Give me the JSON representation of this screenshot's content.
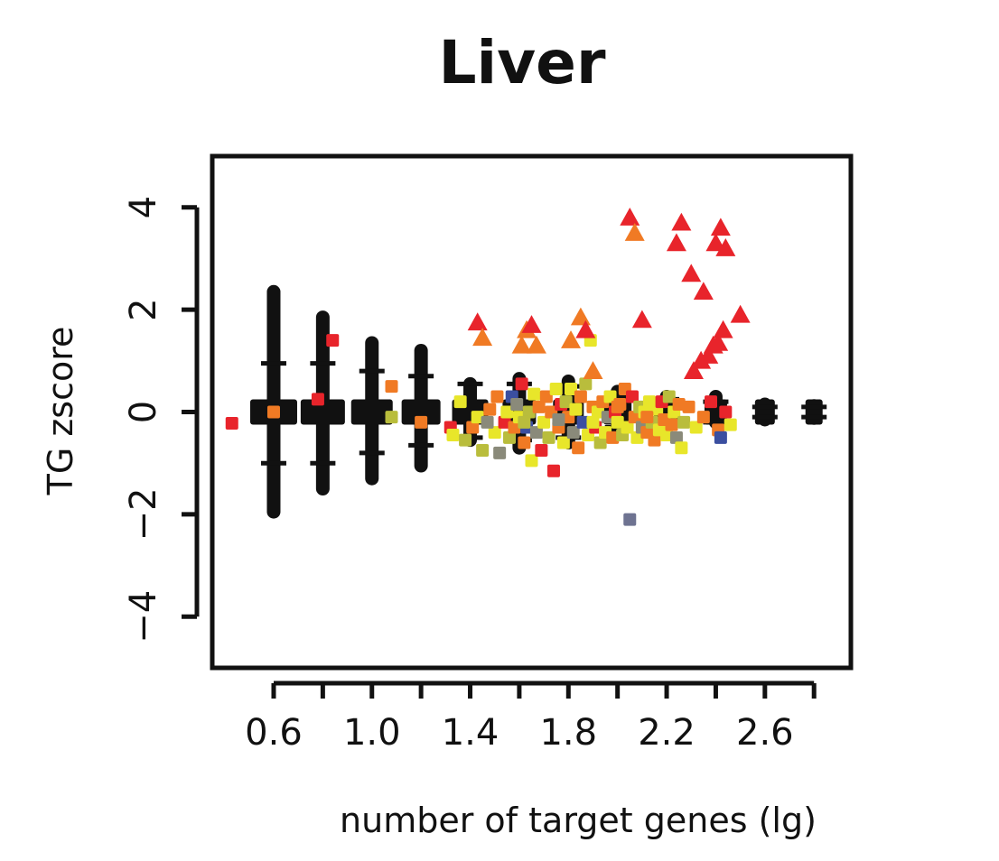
{
  "chart_data": {
    "type": "scatter",
    "title": "Liver",
    "xlabel": "number of target genes (lg)",
    "ylabel": "TG zscore",
    "xlim": [
      0.35,
      2.95
    ],
    "ylim": [
      -5,
      5
    ],
    "xticks": [
      0.6,
      0.8,
      1.0,
      1.2,
      1.4,
      1.6,
      1.8,
      2.0,
      2.2,
      2.4,
      2.6,
      2.8
    ],
    "xtick_labels": [
      "0.6",
      "",
      "1.0",
      "",
      "1.4",
      "",
      "1.8",
      "",
      "2.2",
      "",
      "2.6",
      ""
    ],
    "yticks": [
      4,
      2,
      0,
      -2,
      -4
    ],
    "ytick_labels": [
      "4",
      "2",
      "0",
      "−2",
      "−4"
    ],
    "grid": false,
    "legend": "none",
    "colors": {
      "null_distribution": "#111111",
      "red": "#e8242b",
      "orange": "#f07a24",
      "yellow": "#e8e62a",
      "olive": "#b9bd3c",
      "grey": "#8a8a7a",
      "blue": "#3b4fa0",
      "slate": "#6e7391"
    },
    "null_columns": [
      {
        "x": 0.6,
        "y_min": -1.95,
        "y_max": 2.35,
        "whisker_hi": 0.95,
        "whisker_lo": -1.0
      },
      {
        "x": 0.8,
        "y_min": -1.5,
        "y_max": 1.85,
        "whisker_hi": 0.95,
        "whisker_lo": -1.0
      },
      {
        "x": 1.0,
        "y_min": -1.3,
        "y_max": 1.35,
        "whisker_hi": 0.8,
        "whisker_lo": -0.8
      },
      {
        "x": 1.2,
        "y_min": -1.05,
        "y_max": 1.2,
        "whisker_hi": 0.7,
        "whisker_lo": -0.65
      },
      {
        "x": 1.4,
        "y_min": -0.55,
        "y_max": 0.55,
        "whisker_hi": 0.55,
        "whisker_lo": -0.5
      },
      {
        "x": 1.6,
        "y_min": -0.7,
        "y_max": 0.65,
        "whisker_hi": 0.55,
        "whisker_lo": -0.55
      },
      {
        "x": 1.8,
        "y_min": -0.6,
        "y_max": 0.6,
        "whisker_hi": 0.5,
        "whisker_lo": -0.5
      },
      {
        "x": 2.0,
        "y_min": -0.35,
        "y_max": 0.4,
        "whisker_hi": 0.3,
        "whisker_lo": -0.3
      },
      {
        "x": 2.2,
        "y_min": -0.3,
        "y_max": 0.3,
        "whisker_hi": 0.25,
        "whisker_lo": -0.25
      },
      {
        "x": 2.4,
        "y_min": -0.2,
        "y_max": 0.3,
        "whisker_hi": 0.2,
        "whisker_lo": -0.2
      },
      {
        "x": 2.6,
        "y_min": -0.15,
        "y_max": 0.15,
        "whisker_hi": 0.1,
        "whisker_lo": -0.1
      },
      {
        "x": 2.8,
        "y_min": -0.12,
        "y_max": 0.12,
        "whisker_hi": 0.1,
        "whisker_lo": -0.1
      }
    ],
    "triangles": [
      {
        "x": 1.43,
        "y": 1.75,
        "c": "red"
      },
      {
        "x": 1.45,
        "y": 1.45,
        "c": "orange"
      },
      {
        "x": 1.61,
        "y": 1.3,
        "c": "orange"
      },
      {
        "x": 1.63,
        "y": 1.6,
        "c": "orange"
      },
      {
        "x": 1.65,
        "y": 1.7,
        "c": "red"
      },
      {
        "x": 1.67,
        "y": 1.3,
        "c": "orange"
      },
      {
        "x": 1.81,
        "y": 1.4,
        "c": "orange"
      },
      {
        "x": 1.85,
        "y": 1.85,
        "c": "orange"
      },
      {
        "x": 1.87,
        "y": 1.6,
        "c": "red"
      },
      {
        "x": 1.9,
        "y": 0.8,
        "c": "orange"
      },
      {
        "x": 2.05,
        "y": 3.8,
        "c": "red"
      },
      {
        "x": 2.07,
        "y": 3.5,
        "c": "orange"
      },
      {
        "x": 2.1,
        "y": 1.8,
        "c": "red"
      },
      {
        "x": 2.24,
        "y": 3.3,
        "c": "red"
      },
      {
        "x": 2.26,
        "y": 3.7,
        "c": "red"
      },
      {
        "x": 2.3,
        "y": 2.7,
        "c": "red"
      },
      {
        "x": 2.31,
        "y": 0.8,
        "c": "red"
      },
      {
        "x": 2.34,
        "y": 1.0,
        "c": "red"
      },
      {
        "x": 2.35,
        "y": 2.35,
        "c": "red"
      },
      {
        "x": 2.37,
        "y": 1.1,
        "c": "red"
      },
      {
        "x": 2.39,
        "y": 1.3,
        "c": "red"
      },
      {
        "x": 2.4,
        "y": 3.3,
        "c": "red"
      },
      {
        "x": 2.42,
        "y": 3.6,
        "c": "red"
      },
      {
        "x": 2.43,
        "y": 1.6,
        "c": "red"
      },
      {
        "x": 2.44,
        "y": 3.2,
        "c": "red"
      },
      {
        "x": 2.5,
        "y": 1.9,
        "c": "red"
      },
      {
        "x": 2.41,
        "y": 1.35,
        "c": "red"
      }
    ],
    "squares": [
      {
        "x": 0.43,
        "y": -0.22,
        "c": "red"
      },
      {
        "x": 0.6,
        "y": 0.0,
        "c": "orange"
      },
      {
        "x": 0.78,
        "y": 0.25,
        "c": "red"
      },
      {
        "x": 0.84,
        "y": 1.4,
        "c": "red"
      },
      {
        "x": 1.08,
        "y": 0.5,
        "c": "orange"
      },
      {
        "x": 1.08,
        "y": -0.1,
        "c": "olive"
      },
      {
        "x": 1.2,
        "y": -0.2,
        "c": "orange"
      },
      {
        "x": 1.32,
        "y": -0.3,
        "c": "red"
      },
      {
        "x": 1.33,
        "y": -0.45,
        "c": "yellow"
      },
      {
        "x": 1.36,
        "y": 0.2,
        "c": "yellow"
      },
      {
        "x": 1.38,
        "y": -0.55,
        "c": "olive"
      },
      {
        "x": 1.41,
        "y": -0.3,
        "c": "orange"
      },
      {
        "x": 1.43,
        "y": -0.1,
        "c": "yellow"
      },
      {
        "x": 1.45,
        "y": -0.75,
        "c": "olive"
      },
      {
        "x": 1.48,
        "y": 0.05,
        "c": "orange"
      },
      {
        "x": 1.5,
        "y": -0.4,
        "c": "yellow"
      },
      {
        "x": 1.51,
        "y": 0.3,
        "c": "orange"
      },
      {
        "x": 1.52,
        "y": -0.8,
        "c": "grey"
      },
      {
        "x": 1.54,
        "y": -0.2,
        "c": "red"
      },
      {
        "x": 1.55,
        "y": 0.0,
        "c": "yellow"
      },
      {
        "x": 1.56,
        "y": -0.5,
        "c": "olive"
      },
      {
        "x": 1.57,
        "y": 0.3,
        "c": "blue"
      },
      {
        "x": 1.58,
        "y": -0.3,
        "c": "orange"
      },
      {
        "x": 1.59,
        "y": 0.15,
        "c": "grey"
      },
      {
        "x": 1.6,
        "y": -0.1,
        "c": "yellow"
      },
      {
        "x": 1.61,
        "y": 0.55,
        "c": "red"
      },
      {
        "x": 1.62,
        "y": -0.6,
        "c": "orange"
      },
      {
        "x": 1.63,
        "y": -0.3,
        "c": "blue"
      },
      {
        "x": 1.64,
        "y": 0.0,
        "c": "olive"
      },
      {
        "x": 1.65,
        "y": -0.95,
        "c": "yellow"
      },
      {
        "x": 1.66,
        "y": 0.35,
        "c": "yellow"
      },
      {
        "x": 1.67,
        "y": -0.4,
        "c": "grey"
      },
      {
        "x": 1.68,
        "y": 0.1,
        "c": "orange"
      },
      {
        "x": 1.69,
        "y": -0.75,
        "c": "red"
      },
      {
        "x": 1.7,
        "y": -0.2,
        "c": "yellow"
      },
      {
        "x": 1.71,
        "y": 0.3,
        "c": "orange"
      },
      {
        "x": 1.72,
        "y": -0.5,
        "c": "olive"
      },
      {
        "x": 1.73,
        "y": 0.0,
        "c": "orange"
      },
      {
        "x": 1.74,
        "y": -1.15,
        "c": "red"
      },
      {
        "x": 1.75,
        "y": 0.45,
        "c": "yellow"
      },
      {
        "x": 1.76,
        "y": -0.3,
        "c": "orange"
      },
      {
        "x": 1.77,
        "y": 0.15,
        "c": "red"
      },
      {
        "x": 1.78,
        "y": -0.6,
        "c": "yellow"
      },
      {
        "x": 1.79,
        "y": 0.2,
        "c": "olive"
      },
      {
        "x": 1.8,
        "y": -0.1,
        "c": "orange"
      },
      {
        "x": 1.81,
        "y": 0.45,
        "c": "yellow"
      },
      {
        "x": 1.82,
        "y": -0.4,
        "c": "grey"
      },
      {
        "x": 1.83,
        "y": 0.05,
        "c": "yellow"
      },
      {
        "x": 1.84,
        "y": -0.7,
        "c": "orange"
      },
      {
        "x": 1.85,
        "y": 0.3,
        "c": "orange"
      },
      {
        "x": 1.86,
        "y": -0.2,
        "c": "blue"
      },
      {
        "x": 1.87,
        "y": 0.55,
        "c": "olive"
      },
      {
        "x": 1.88,
        "y": -0.45,
        "c": "yellow"
      },
      {
        "x": 1.89,
        "y": 1.4,
        "c": "yellow"
      },
      {
        "x": 1.9,
        "y": 0.1,
        "c": "orange"
      },
      {
        "x": 1.91,
        "y": -0.3,
        "c": "red"
      },
      {
        "x": 1.92,
        "y": 0.0,
        "c": "yellow"
      },
      {
        "x": 1.93,
        "y": -0.6,
        "c": "olive"
      },
      {
        "x": 1.94,
        "y": 0.2,
        "c": "orange"
      },
      {
        "x": 1.95,
        "y": -0.4,
        "c": "yellow"
      },
      {
        "x": 1.96,
        "y": -0.1,
        "c": "grey"
      },
      {
        "x": 1.97,
        "y": 0.3,
        "c": "yellow"
      },
      {
        "x": 1.98,
        "y": -0.5,
        "c": "orange"
      },
      {
        "x": 1.99,
        "y": 0.0,
        "c": "red"
      },
      {
        "x": 2.0,
        "y": -0.2,
        "c": "yellow"
      },
      {
        "x": 2.01,
        "y": 0.15,
        "c": "orange"
      },
      {
        "x": 2.02,
        "y": -0.45,
        "c": "olive"
      },
      {
        "x": 2.03,
        "y": 0.45,
        "c": "orange"
      },
      {
        "x": 2.04,
        "y": -0.3,
        "c": "yellow"
      },
      {
        "x": 2.05,
        "y": -2.1,
        "c": "slate"
      },
      {
        "x": 2.06,
        "y": 0.3,
        "c": "red"
      },
      {
        "x": 2.07,
        "y": -0.1,
        "c": "orange"
      },
      {
        "x": 2.08,
        "y": -0.5,
        "c": "yellow"
      },
      {
        "x": 2.09,
        "y": 0.1,
        "c": "olive"
      },
      {
        "x": 2.1,
        "y": -0.3,
        "c": "grey"
      },
      {
        "x": 2.11,
        "y": 0.0,
        "c": "yellow"
      },
      {
        "x": 2.12,
        "y": -0.4,
        "c": "orange"
      },
      {
        "x": 2.13,
        "y": 0.2,
        "c": "yellow"
      },
      {
        "x": 2.14,
        "y": -0.2,
        "c": "olive"
      },
      {
        "x": 2.15,
        "y": -0.55,
        "c": "orange"
      },
      {
        "x": 2.16,
        "y": 0.05,
        "c": "yellow"
      },
      {
        "x": 2.17,
        "y": -0.35,
        "c": "yellow"
      },
      {
        "x": 2.18,
        "y": 0.2,
        "c": "red"
      },
      {
        "x": 2.19,
        "y": -0.15,
        "c": "orange"
      },
      {
        "x": 2.2,
        "y": -0.45,
        "c": "yellow"
      },
      {
        "x": 2.21,
        "y": 0.3,
        "c": "olive"
      },
      {
        "x": 2.22,
        "y": -0.25,
        "c": "orange"
      },
      {
        "x": 2.23,
        "y": 0.0,
        "c": "yellow"
      },
      {
        "x": 2.24,
        "y": -0.5,
        "c": "grey"
      },
      {
        "x": 2.25,
        "y": 0.15,
        "c": "orange"
      },
      {
        "x": 2.26,
        "y": -0.7,
        "c": "yellow"
      },
      {
        "x": 2.27,
        "y": -0.2,
        "c": "olive"
      },
      {
        "x": 2.29,
        "y": 0.1,
        "c": "orange"
      },
      {
        "x": 2.32,
        "y": -0.3,
        "c": "yellow"
      },
      {
        "x": 2.35,
        "y": -0.1,
        "c": "orange"
      },
      {
        "x": 2.38,
        "y": 0.2,
        "c": "red"
      },
      {
        "x": 2.41,
        "y": -0.35,
        "c": "orange"
      },
      {
        "x": 2.42,
        "y": -0.5,
        "c": "blue"
      },
      {
        "x": 2.44,
        "y": 0.0,
        "c": "red"
      },
      {
        "x": 2.46,
        "y": -0.25,
        "c": "yellow"
      },
      {
        "x": 1.47,
        "y": -0.2,
        "c": "grey"
      },
      {
        "x": 1.62,
        "y": -0.2,
        "c": "olive"
      },
      {
        "x": 1.76,
        "y": -0.15,
        "c": "grey"
      },
      {
        "x": 1.9,
        "y": -0.2,
        "c": "yellow"
      },
      {
        "x": 2.0,
        "y": 0.1,
        "c": "orange"
      },
      {
        "x": 2.12,
        "y": -0.1,
        "c": "orange"
      }
    ]
  }
}
